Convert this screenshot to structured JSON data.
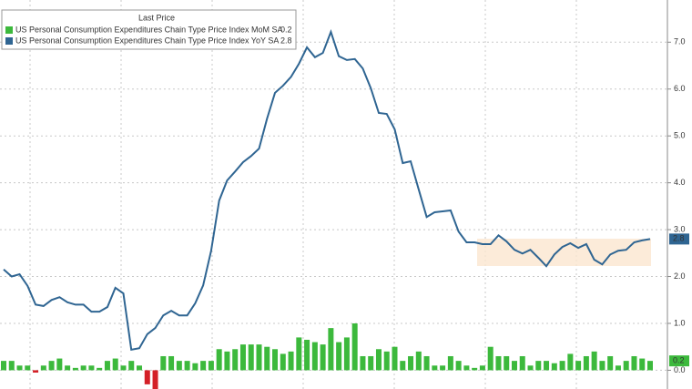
{
  "chart_data": {
    "type": "line_bar",
    "legend_title": "Last Price",
    "series": [
      {
        "name": "US Personal Consumption Expenditures Chain Type Price Index MoM SA",
        "type": "bar",
        "color": "#3cb93c",
        "negative_color": "#d42027",
        "values": [
          0.2,
          0.2,
          0.1,
          0.1,
          -0.05,
          0.1,
          0.2,
          0.25,
          0.1,
          0.05,
          0.1,
          0.1,
          0.05,
          0.2,
          0.25,
          0.1,
          0.2,
          0.1,
          -0.3,
          -0.5,
          0.3,
          0.3,
          0.2,
          0.2,
          0.15,
          0.2,
          0.2,
          0.45,
          0.4,
          0.45,
          0.55,
          0.55,
          0.55,
          0.5,
          0.45,
          0.35,
          0.4,
          0.7,
          0.65,
          0.6,
          0.55,
          0.9,
          0.6,
          0.7,
          1.0,
          0.3,
          0.3,
          0.45,
          0.4,
          0.5,
          0.2,
          0.3,
          0.4,
          0.3,
          0.1,
          0.1,
          0.3,
          0.2,
          0.1,
          0.05,
          0.1,
          0.5,
          0.3,
          0.3,
          0.2,
          0.3,
          0.1,
          0.2,
          0.2,
          0.15,
          0.2,
          0.35,
          0.2,
          0.3,
          0.4,
          0.2,
          0.3,
          0.1,
          0.2,
          0.3,
          0.25,
          0.2
        ]
      },
      {
        "name": "US Personal Consumption Expenditures Chain Type Price Index YoY SA",
        "type": "line",
        "color": "#2f6592",
        "values": [
          2.15,
          2.0,
          2.05,
          1.8,
          1.4,
          1.37,
          1.5,
          1.56,
          1.45,
          1.4,
          1.4,
          1.25,
          1.25,
          1.35,
          1.76,
          1.64,
          0.44,
          0.47,
          0.77,
          0.9,
          1.17,
          1.27,
          1.17,
          1.17,
          1.43,
          1.81,
          2.55,
          3.62,
          4.05,
          4.24,
          4.44,
          4.57,
          4.73,
          5.37,
          5.92,
          6.07,
          6.26,
          6.54,
          6.89,
          6.68,
          6.77,
          7.22,
          6.7,
          6.62,
          6.64,
          6.44,
          6.02,
          5.49,
          5.47,
          5.14,
          4.42,
          4.46,
          3.86,
          3.27,
          3.37,
          3.39,
          3.41,
          2.96,
          2.73,
          2.73,
          2.69,
          2.69,
          2.88,
          2.75,
          2.57,
          2.49,
          2.57,
          2.4,
          2.22,
          2.47,
          2.63,
          2.71,
          2.61,
          2.69,
          2.36,
          2.26,
          2.47,
          2.55,
          2.57,
          2.73,
          2.77,
          2.8
        ]
      }
    ],
    "ylim": [
      -0.4,
      7.9
    ],
    "yticks": [
      {
        "value": 0,
        "label": "0.0"
      },
      {
        "value": 1,
        "label": "1.0"
      },
      {
        "value": 2,
        "label": "2.0"
      },
      {
        "value": 3,
        "label": "3.0"
      },
      {
        "value": 4,
        "label": "4.0"
      },
      {
        "value": 5,
        "label": "5.0"
      },
      {
        "value": 6,
        "label": "6.0"
      },
      {
        "value": 7,
        "label": "7.0"
      }
    ],
    "grid": true
  }
}
